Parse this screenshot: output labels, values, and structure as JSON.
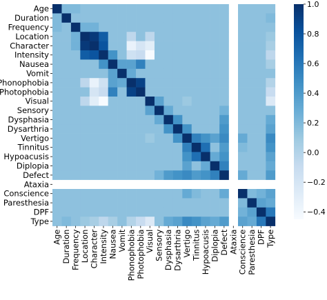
{
  "chart_data": {
    "type": "heatmap",
    "title": "",
    "xlabel": "",
    "ylabel": "",
    "labels": [
      "Age",
      "Duration",
      "Frequency",
      "Location",
      "Character",
      "Intensity",
      "Nausea",
      "Vomit",
      "Phonophobia",
      "Photophobia",
      "Visual",
      "Sensory",
      "Dysphasia",
      "Dysarthria",
      "Vertigo",
      "Tinnitus",
      "Hypoacusis",
      "Diplopia",
      "Defect",
      "Ataxia",
      "Conscience",
      "Paresthesia",
      "DPF",
      "Type"
    ],
    "missing_label": "Ataxia",
    "colorbar": {
      "min": -0.45,
      "max": 1.0,
      "ticks": [
        1.0,
        0.8,
        0.6,
        0.4,
        0.2,
        0.0,
        -0.2,
        -0.4
      ],
      "tick_labels": [
        "1.0",
        "0.8",
        "0.6",
        "0.4",
        "0.2",
        "0.0",
        "−0.2",
        "−0.4"
      ],
      "colormap": "Blues"
    },
    "pairs": [
      [
        "Location",
        "Character",
        0.95
      ],
      [
        "Location",
        "Intensity",
        0.75
      ],
      [
        "Character",
        "Intensity",
        0.8
      ],
      [
        "Phonophobia",
        "Photophobia",
        0.9
      ],
      [
        "Nausea",
        "Photophobia",
        0.55
      ],
      [
        "Nausea",
        "Phonophobia",
        0.35
      ],
      [
        "Vomit",
        "Phonophobia",
        0.3
      ],
      [
        "Nausea",
        "Vomit",
        0.35
      ],
      [
        "Location",
        "Visual",
        -0.05
      ],
      [
        "Character",
        "Visual",
        -0.3
      ],
      [
        "Intensity",
        "Visual",
        -0.45
      ],
      [
        "Character",
        "Phonophobia",
        -0.35
      ],
      [
        "Character",
        "Photophobia",
        -0.2
      ],
      [
        "Intensity",
        "Phonophobia",
        -0.15
      ],
      [
        "Intensity",
        "Photophobia",
        -0.1
      ],
      [
        "Location",
        "Phonophobia",
        -0.05
      ],
      [
        "Intensity",
        "Nausea",
        0.45
      ],
      [
        "Visual",
        "Type",
        -0.25
      ],
      [
        "Photophobia",
        "Type",
        -0.1
      ],
      [
        "Phonophobia",
        "Type",
        0.0
      ],
      [
        "Nausea",
        "Type",
        0.05
      ],
      [
        "Location",
        "Type",
        0.1
      ],
      [
        "Character",
        "Type",
        0.05
      ],
      [
        "Intensity",
        "Type",
        -0.05
      ],
      [
        "Visual",
        "Sensory",
        0.35
      ],
      [
        "Visual",
        "Vertigo",
        0.1
      ],
      [
        "Dysphasia",
        "Dysarthria",
        0.45
      ],
      [
        "Sensory",
        "Dysphasia",
        0.3
      ],
      [
        "Dysarthria",
        "Vertigo",
        0.45
      ],
      [
        "Vertigo",
        "Tinnitus",
        0.55
      ],
      [
        "Vertigo",
        "Hypoacusis",
        0.45
      ],
      [
        "Tinnitus",
        "Hypoacusis",
        0.65
      ],
      [
        "Vertigo",
        "Diplopia",
        0.35
      ],
      [
        "Vertigo",
        "Defect",
        0.5
      ],
      [
        "Tinnitus",
        "Defect",
        0.4
      ],
      [
        "Diplopia",
        "Defect",
        0.55
      ],
      [
        "Hypoacusis",
        "Defect",
        0.45
      ],
      [
        "Dysphasia",
        "Defect",
        0.4
      ],
      [
        "Dysarthria",
        "Defect",
        0.45
      ],
      [
        "Sensory",
        "Defect",
        0.25
      ],
      [
        "Hypoacusis",
        "Diplopia",
        0.3
      ],
      [
        "Vertigo",
        "Type",
        0.5
      ],
      [
        "Tinnitus",
        "Type",
        0.45
      ],
      [
        "Hypoacusis",
        "Type",
        0.35
      ],
      [
        "Diplopia",
        "Type",
        0.3
      ],
      [
        "Defect",
        "Type",
        0.4
      ],
      [
        "Dysarthria",
        "Type",
        0.35
      ],
      [
        "Dysphasia",
        "Type",
        0.3
      ],
      [
        "Conscience",
        "Type",
        0.35
      ],
      [
        "Paresthesia",
        "Type",
        0.3
      ],
      [
        "DPF",
        "Type",
        0.6
      ],
      [
        "Conscience",
        "Paresthesia",
        0.2
      ],
      [
        "Conscience",
        "DPF",
        0.25
      ],
      [
        "Paresthesia",
        "DPF",
        0.35
      ],
      [
        "Defect",
        "Conscience",
        0.3
      ],
      [
        "Vertigo",
        "Conscience",
        0.3
      ],
      [
        "Tinnitus",
        "Conscience",
        0.2
      ],
      [
        "Duration",
        "Type",
        0.2
      ],
      [
        "Frequency",
        "Type",
        0.15
      ],
      [
        "Age",
        "Duration",
        0.2
      ],
      [
        "Age",
        "Frequency",
        0.2
      ],
      [
        "Frequency",
        "Location",
        0.25
      ],
      [
        "Frequency",
        "Character",
        0.25
      ]
    ],
    "default_value": 0.15
  }
}
